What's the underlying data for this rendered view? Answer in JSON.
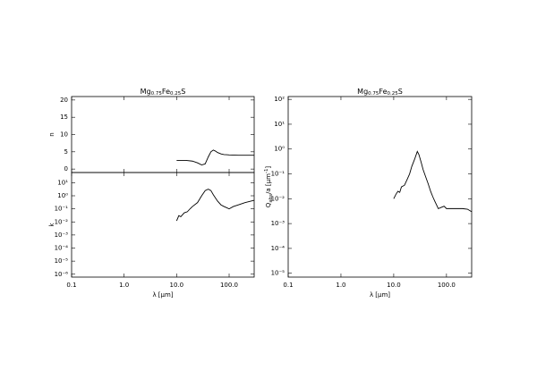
{
  "chart_data": [
    {
      "type": "line",
      "title": [
        "Mg",
        "0.75",
        "Fe",
        "0.25",
        "S"
      ],
      "ylabel": [
        "n"
      ],
      "color": "#000000",
      "ylim": [
        -1,
        21
      ],
      "yticks": [
        0,
        5,
        10,
        15,
        20
      ],
      "x": [
        10,
        15,
        20,
        25,
        30,
        35,
        40,
        45,
        50,
        55,
        60,
        70,
        80,
        100,
        150,
        200,
        300
      ],
      "values": [
        2.5,
        2.5,
        2.3,
        1.8,
        1.2,
        1.5,
        3.5,
        5.0,
        5.5,
        5.2,
        4.8,
        4.4,
        4.2,
        4.1,
        4.0,
        4.0,
        4.0
      ]
    },
    {
      "type": "line",
      "xlabel": "λ [μm]",
      "ylabel": [
        "k"
      ],
      "color": "#000000",
      "xlog": true,
      "ylog": true,
      "xlim": [
        0.1,
        300
      ],
      "xticks": [
        0.1,
        {
          "value": 1,
          "label": "1.0"
        },
        {
          "value": 10,
          "label": "10.0"
        },
        {
          "value": 100,
          "label": "100.0"
        }
      ],
      "ylim": [
        6e-07,
        60
      ],
      "yticks": [
        {
          "value": 1e-06,
          "label": "10⁻⁶"
        },
        {
          "value": 1e-05,
          "label": "10⁻⁵"
        },
        {
          "value": 0.0001,
          "label": "10⁻⁴"
        },
        {
          "value": 0.001,
          "label": "10⁻³"
        },
        {
          "value": 0.01,
          "label": "10⁻²"
        },
        {
          "value": 0.1,
          "label": "10⁻¹"
        },
        {
          "value": 1,
          "label": "10⁰"
        },
        {
          "value": 10,
          "label": "10¹"
        }
      ],
      "x": [
        10,
        11,
        12,
        14,
        16,
        18,
        20,
        25,
        30,
        35,
        40,
        45,
        50,
        60,
        70,
        80,
        100,
        120,
        150,
        200,
        300
      ],
      "values": [
        0.012,
        0.03,
        0.025,
        0.05,
        0.06,
        0.1,
        0.15,
        0.3,
        1.0,
        2.5,
        3.2,
        2.5,
        1.2,
        0.4,
        0.2,
        0.15,
        0.1,
        0.15,
        0.2,
        0.3,
        0.45
      ]
    },
    {
      "type": "line",
      "title": [
        "Mg",
        "0.75",
        "Fe",
        "0.25",
        "S"
      ],
      "xlabel": "λ [μm]",
      "ylabel": [
        "Q",
        "abs",
        "/a [μm",
        "-1",
        "]"
      ],
      "color": "#000000",
      "xlog": true,
      "ylog": true,
      "xlim": [
        0.1,
        300
      ],
      "xticks": [
        0.1,
        {
          "value": 1,
          "label": "1.0"
        },
        {
          "value": 10,
          "label": "10.0"
        },
        {
          "value": 100,
          "label": "100.0"
        }
      ],
      "ylim": [
        7e-06,
        130
      ],
      "yticks": [
        {
          "value": 1e-05,
          "label": "10⁻⁵"
        },
        {
          "value": 0.0001,
          "label": "10⁻⁴"
        },
        {
          "value": 0.001,
          "label": "10⁻³"
        },
        {
          "value": 0.01,
          "label": "10⁻²"
        },
        {
          "value": 0.1,
          "label": "10⁻¹"
        },
        {
          "value": 1,
          "label": "10⁰"
        },
        {
          "value": 10,
          "label": "10¹"
        },
        {
          "value": 100,
          "label": "10²"
        }
      ],
      "x": [
        10,
        11,
        12,
        13,
        14,
        16,
        18,
        20,
        22,
        25,
        28,
        30,
        33,
        36,
        40,
        45,
        50,
        55,
        60,
        70,
        80,
        90,
        100,
        150,
        200,
        250,
        300
      ],
      "values": [
        0.01,
        0.015,
        0.02,
        0.018,
        0.03,
        0.035,
        0.06,
        0.1,
        0.2,
        0.4,
        0.8,
        0.6,
        0.3,
        0.15,
        0.08,
        0.04,
        0.02,
        0.012,
        0.008,
        0.004,
        0.0045,
        0.005,
        0.004,
        0.004,
        0.004,
        0.0038,
        0.003
      ]
    }
  ]
}
